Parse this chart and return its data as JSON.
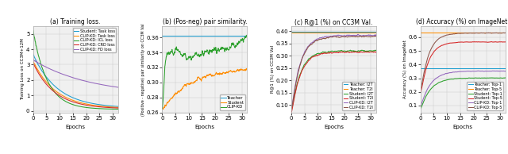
{
  "subplot_a": {
    "title": "(a) Training loss.",
    "ylabel": "Training Loss on CC3M+12M",
    "xlabel": "Epochs",
    "xlim": [
      0,
      32
    ],
    "ylim": [
      -0.1,
      5.5
    ],
    "yticks": [
      0,
      1,
      2,
      3,
      4,
      5
    ],
    "xticks": [
      0,
      5,
      10,
      15,
      20,
      25,
      30
    ],
    "lines": {
      "Student: Task loss": {
        "color": "#1f9ecf"
      },
      "CLIP-KD: Task loss": {
        "color": "#ff8c00"
      },
      "CLIP-KD: ICL loss": {
        "color": "#2ca02c"
      },
      "CLIP-KD: CRD loss": {
        "color": "#d62728"
      },
      "CLIP-KD: FD loss": {
        "color": "#9467bd"
      }
    }
  },
  "subplot_b": {
    "title": "(b) (Pos-neg) pair similarity.",
    "ylabel": "(Positive - negative) pair similarity on CC3M Val",
    "xlabel": "Epochs",
    "xlim": [
      0,
      32
    ],
    "ylim": [
      0.26,
      0.375
    ],
    "yticks": [
      0.26,
      0.28,
      0.3,
      0.32,
      0.34,
      0.36
    ],
    "xticks": [
      0,
      5,
      10,
      15,
      20,
      25,
      30
    ],
    "lines": {
      "Teacher": {
        "color": "#1f9ecf"
      },
      "Student": {
        "color": "#ff8c00"
      },
      "CLIP-KD": {
        "color": "#2ca02c"
      }
    }
  },
  "subplot_c": {
    "title": "(c) R@1 (%) on CC3M Val.",
    "ylabel": "R@1 (%) on CC3M Val",
    "xlabel": "Epochs",
    "xlim": [
      0,
      32
    ],
    "ylim": [
      0.07,
      0.42
    ],
    "yticks": [
      0.1,
      0.15,
      0.2,
      0.25,
      0.3,
      0.35,
      0.4
    ],
    "xticks": [
      0,
      5,
      10,
      15,
      20,
      25,
      30
    ],
    "lines": {
      "Teacher: I2T": {
        "color": "#1f9ecf"
      },
      "Teacher: T2I": {
        "color": "#ff8c00"
      },
      "Student: I2T": {
        "color": "#2ca02c"
      },
      "Student: T2I": {
        "color": "#d62728"
      },
      "CLIP-KD: I2T": {
        "color": "#9467bd"
      },
      "CLIP-KD: T2I": {
        "color": "#8c564b"
      }
    }
  },
  "subplot_d": {
    "title": "(d) Accuracy (%) on ImageNet.",
    "ylabel": "Accuracy (%) on ImageNet",
    "xlabel": "Epochs",
    "xlim": [
      0,
      32
    ],
    "ylim": [
      0.05,
      0.68
    ],
    "yticks": [
      0.1,
      0.2,
      0.3,
      0.4,
      0.5,
      0.6
    ],
    "xticks": [
      0,
      5,
      10,
      15,
      20,
      25,
      30
    ],
    "lines": {
      "Teacher: Top-1": {
        "color": "#1f9ecf"
      },
      "Teacher: Top-5": {
        "color": "#ff8c00"
      },
      "Student: Top-1": {
        "color": "#2ca02c"
      },
      "Student: Top-5": {
        "color": "#d62728"
      },
      "CLIP-KD: Top-1": {
        "color": "#9467bd"
      },
      "CLIP-KD: Top-5": {
        "color": "#8c564b"
      }
    }
  }
}
